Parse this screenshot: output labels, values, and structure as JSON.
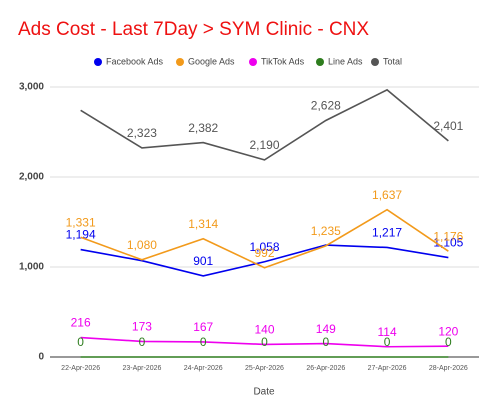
{
  "chart_data": {
    "type": "line",
    "title": "Ads Cost - Last 7Day > SYM Clinic - CNX",
    "x_label": "Date",
    "categories": [
      "22-Apr-2026",
      "23-Apr-2026",
      "24-Apr-2026",
      "25-Apr-2026",
      "26-Apr-2026",
      "27-Apr-2026",
      "28-Apr-2026"
    ],
    "series": [
      {
        "name": "Facebook Ads",
        "color": "#0000ee",
        "values": [
          1194,
          1070,
          901,
          1058,
          1244,
          1217,
          1105
        ],
        "value_labels": [
          "1,194",
          null,
          "901",
          "1,058",
          null,
          "1,217",
          "1,105"
        ]
      },
      {
        "name": "Google Ads",
        "color": "#f29a1b",
        "values": [
          1331,
          1080,
          1314,
          992,
          1235,
          1637,
          1176
        ],
        "value_labels": [
          "1,331",
          "1,080",
          "1,314",
          "992",
          "1,235",
          "1,637",
          "1,176"
        ]
      },
      {
        "name": "TikTok Ads",
        "color": "#ee00ee",
        "values": [
          216,
          173,
          167,
          140,
          149,
          114,
          120
        ]
      },
      {
        "name": "Line Ads",
        "color": "#2e7d1e",
        "values": [
          0,
          0,
          0,
          0,
          0,
          0,
          0
        ]
      },
      {
        "name": "Total",
        "color": "#555555",
        "values": [
          2741,
          2323,
          2382,
          2190,
          2628,
          2968,
          2401
        ],
        "value_labels": [
          null,
          "2,323",
          "2,382",
          "2,190",
          "2,628",
          null,
          "2,401"
        ]
      }
    ],
    "ylim": [
      0,
      3000
    ],
    "yticks": [
      {
        "value": 0,
        "label": "0"
      },
      {
        "value": 1000,
        "label": "1,000"
      },
      {
        "value": 2000,
        "label": "2,000"
      },
      {
        "value": 3000,
        "label": "3,000"
      }
    ],
    "grid": true
  }
}
